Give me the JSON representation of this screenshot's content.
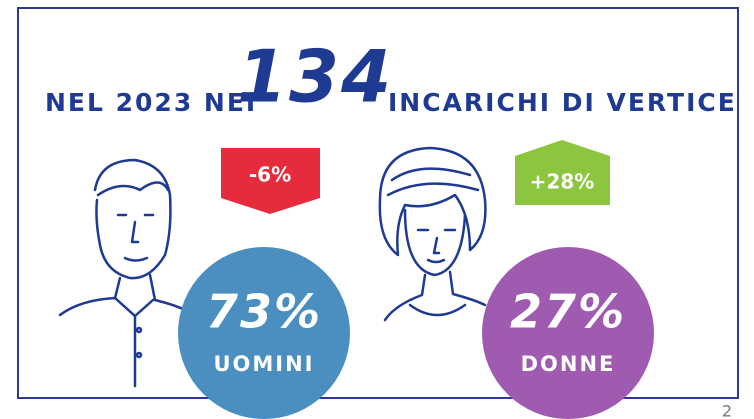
{
  "header": {
    "prefix": "NEL 2023 NEI",
    "number": "134",
    "suffix": "INCARICHI DI VERTICE"
  },
  "items": [
    {
      "change": "-6%",
      "percent": "73%",
      "label": "UOMINI"
    },
    {
      "change": "+28%",
      "percent": "27%",
      "label": "DONNE"
    }
  ],
  "page_number": "2"
}
